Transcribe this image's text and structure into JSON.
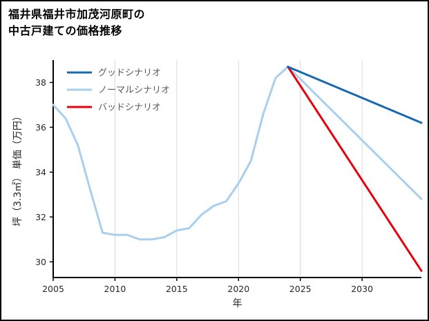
{
  "title": {
    "line1": "福井県福井市加茂河原町の",
    "line2": "中古戸建ての価格推移"
  },
  "chart_data": {
    "type": "line",
    "title": "福井県福井市加茂河原町の中古戸建ての価格推移",
    "xlabel": "年",
    "ylabel": "坪（3.3㎡） 単価（万円）",
    "xlim": [
      2005,
      2034.8
    ],
    "ylim": [
      29.3,
      39.0
    ],
    "xticks": [
      2005,
      2010,
      2015,
      2020,
      2025,
      2030
    ],
    "yticks": [
      30,
      32,
      34,
      36,
      38
    ],
    "grid": "vertical",
    "grid_color": "#d9d9d9",
    "axis_color": "#000000",
    "legend_position": "upper-left",
    "series": [
      {
        "name": "グッドシナリオ",
        "color": "#1569b3",
        "width": 3,
        "zorder": 3,
        "x": [
          2024,
          2034.8
        ],
        "y": [
          38.7,
          36.2
        ]
      },
      {
        "name": "ノーマルシナリオ",
        "color": "#a8cfee",
        "width": 3,
        "zorder": 1,
        "x": [
          2005,
          2006,
          2007,
          2008,
          2009,
          2010,
          2011,
          2012,
          2013,
          2014,
          2015,
          2016,
          2017,
          2018,
          2019,
          2020,
          2021,
          2022,
          2023,
          2024,
          2034.8
        ],
        "y": [
          37.0,
          36.4,
          35.2,
          33.2,
          31.3,
          31.2,
          31.2,
          31.0,
          31.0,
          31.1,
          31.4,
          31.5,
          32.1,
          32.5,
          32.7,
          33.5,
          34.5,
          36.6,
          38.2,
          38.7,
          32.8
        ]
      },
      {
        "name": "バッドシナリオ",
        "color": "#e8000d",
        "width": 3,
        "zorder": 2,
        "x": [
          2024,
          2034.8
        ],
        "y": [
          38.7,
          29.6
        ]
      }
    ]
  }
}
